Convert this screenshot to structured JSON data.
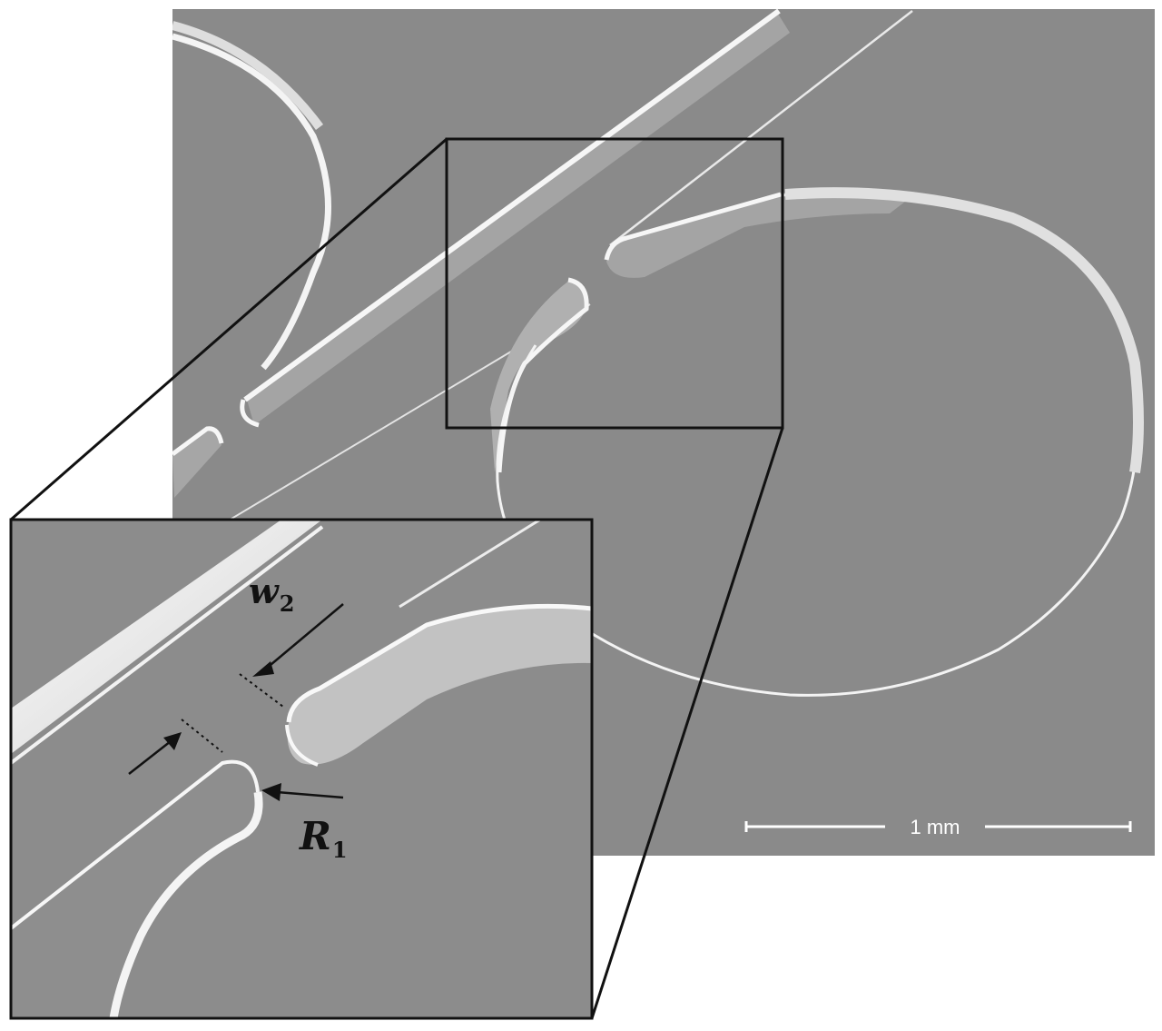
{
  "scale_bar": {
    "label": "1 mm"
  },
  "annotations": {
    "w2": {
      "symbol": "w",
      "subscript": "2"
    },
    "r1": {
      "symbol": "R",
      "subscript": "1"
    }
  },
  "colors": {
    "substrate": "#8a8a8a",
    "ridge_highlight": "#f2f2f2",
    "outline": "#111111",
    "background": "#ffffff"
  }
}
